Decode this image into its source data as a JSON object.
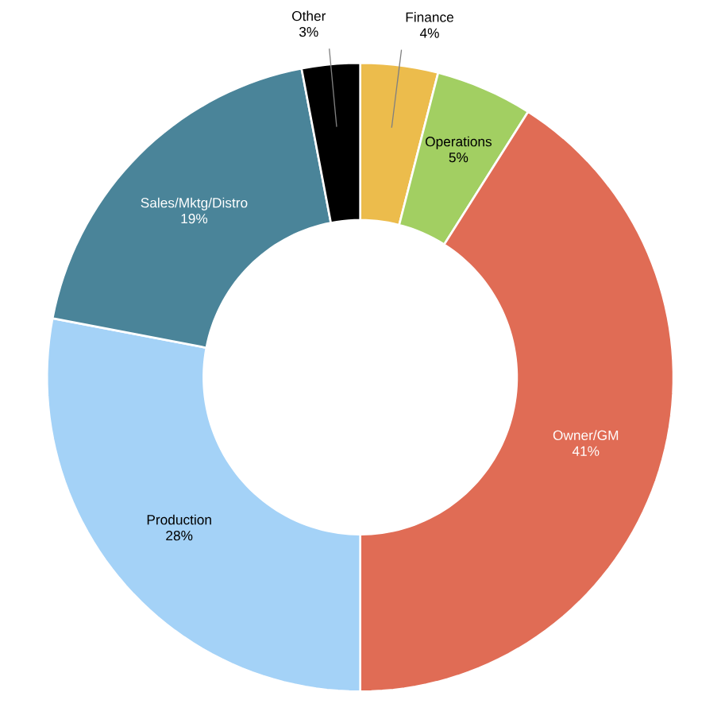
{
  "chart_data": {
    "type": "donut",
    "categories": [
      "Finance",
      "Operations",
      "Owner/GM",
      "Production",
      "Sales/Mktg/Distro",
      "Other"
    ],
    "values": [
      4,
      5,
      41,
      28,
      19,
      3
    ],
    "colors": [
      "#ecbc4c",
      "#a2cf62",
      "#e06c55",
      "#a4d2f7",
      "#4a8499",
      "#000000"
    ],
    "value_labels": [
      "4%",
      "5%",
      "41%",
      "28%",
      "19%",
      "3%"
    ]
  }
}
